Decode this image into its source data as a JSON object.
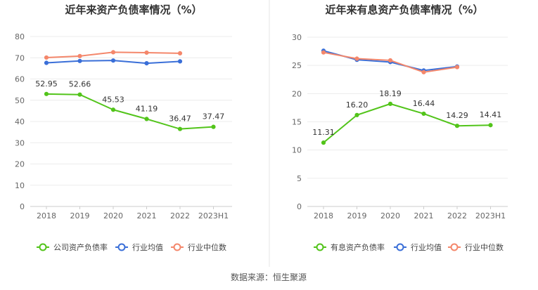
{
  "chart_data": [
    {
      "type": "line",
      "title": "近年来资产负债率情况（%）",
      "categories": [
        "2018",
        "2019",
        "2020",
        "2021",
        "2022",
        "2023H1"
      ],
      "ylim": [
        0,
        80
      ],
      "yticks": [
        0,
        10,
        20,
        30,
        40,
        50,
        60,
        70,
        80
      ],
      "grid": true,
      "legend_position": "bottom",
      "series": [
        {
          "name": "公司资产负债率",
          "color": "#52c41a",
          "labels": true,
          "values": [
            52.95,
            52.66,
            45.53,
            41.19,
            36.47,
            37.47
          ]
        },
        {
          "name": "行业均值",
          "color": "#3a6fd8",
          "labels": false,
          "values": [
            67.6,
            68.5,
            68.7,
            67.4,
            68.3,
            null
          ]
        },
        {
          "name": "行业中位数",
          "color": "#f4876b",
          "labels": false,
          "values": [
            70.1,
            70.8,
            72.6,
            72.4,
            72.1,
            null
          ]
        }
      ]
    },
    {
      "type": "line",
      "title": "近年来有息资产负债率情况（%）",
      "categories": [
        "2018",
        "2019",
        "2020",
        "2021",
        "2022",
        "2023H1"
      ],
      "ylim": [
        0,
        30
      ],
      "yticks": [
        0,
        5,
        10,
        15,
        20,
        25,
        30
      ],
      "grid": true,
      "legend_position": "bottom",
      "series": [
        {
          "name": "有息资产负债率",
          "color": "#52c41a",
          "labels": true,
          "values": [
            11.31,
            16.2,
            18.19,
            16.44,
            14.29,
            14.41
          ],
          "value_labels": [
            "11.31",
            "16.20",
            "18.19",
            "16.44",
            "14.29",
            "14.41"
          ]
        },
        {
          "name": "行业均值",
          "color": "#3a6fd8",
          "labels": false,
          "values": [
            27.6,
            26.0,
            25.6,
            24.1,
            24.8,
            null
          ]
        },
        {
          "name": "行业中位数",
          "color": "#f4876b",
          "labels": false,
          "values": [
            27.3,
            26.2,
            25.9,
            23.8,
            24.7,
            null
          ]
        }
      ]
    }
  ],
  "footer": {
    "source": "数据来源：恒生聚源"
  }
}
